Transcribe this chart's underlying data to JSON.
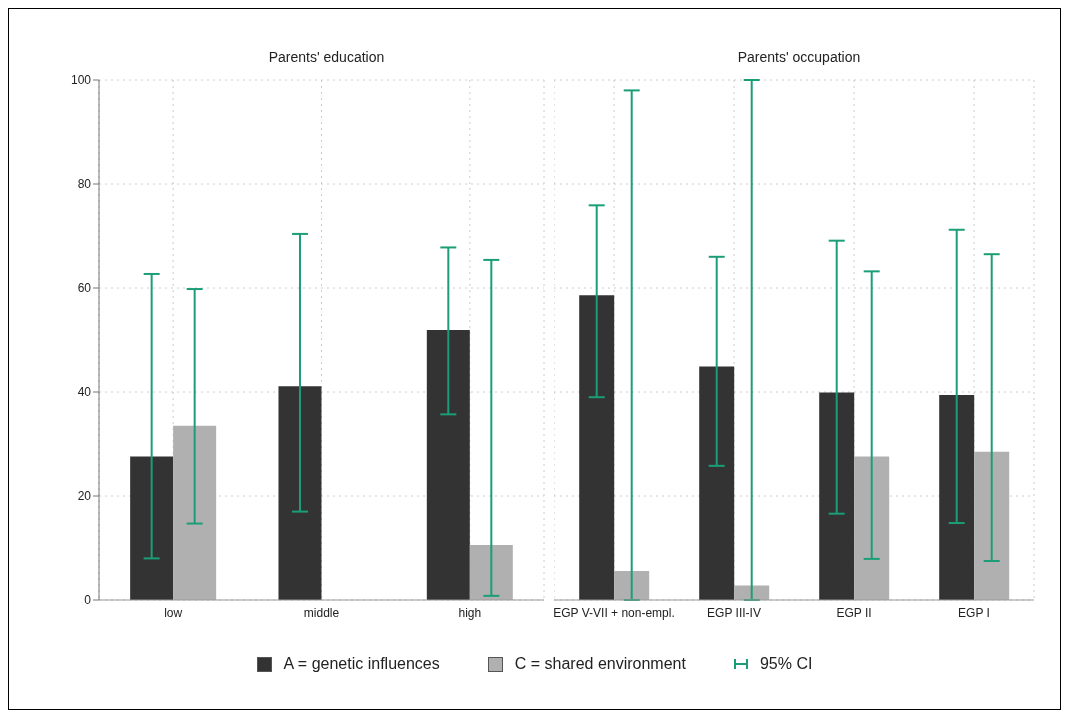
{
  "chart_data": [
    {
      "type": "bar",
      "title": "Parents' education",
      "categories": [
        "low",
        "middle",
        "high"
      ],
      "ylim": [
        0,
        100
      ],
      "yticks": [
        0,
        20,
        40,
        60,
        80,
        100
      ],
      "grid": true,
      "legend": "bottom",
      "series": [
        {
          "name": "A = genetic influences",
          "color": "#333333",
          "values": [
            27.6,
            41.1,
            51.9
          ],
          "errors": [
            [
              8,
              62.7
            ],
            [
              17,
              70.4
            ],
            [
              35.7,
              67.8
            ]
          ]
        },
        {
          "name": "C = shared environment",
          "color": "#b0b0b0",
          "values": [
            33.5,
            null,
            10.6
          ],
          "errors": [
            [
              14.7,
              59.8
            ],
            null,
            [
              0.8,
              65.4
            ]
          ]
        }
      ],
      "annotations": [
        "95% CI"
      ]
    },
    {
      "type": "bar",
      "title": "Parents' occupation",
      "categories": [
        "EGP V-VII + non-empl.",
        "EGP III-IV",
        "EGP II",
        "EGP I"
      ],
      "ylim": [
        0,
        100
      ],
      "yticks": [
        0,
        20,
        40,
        60,
        80,
        100
      ],
      "grid": true,
      "tick_labels": "x",
      "series": [
        {
          "color": "#333333",
          "values": [
            58.6,
            44.9,
            39.9,
            39.4
          ],
          "errors": [
            [
              39,
              75.9
            ],
            [
              25.8,
              66
            ],
            [
              16.6,
              69.1
            ],
            [
              14.8,
              71.2
            ]
          ]
        },
        {
          "color": "#b0b0b0",
          "values": [
            5.6,
            2.8,
            27.6,
            28.5
          ],
          "errors": [
            [
              0,
              98
            ],
            [
              0,
              100
            ],
            [
              7.9,
              63.2
            ],
            [
              7.5,
              66.5
            ]
          ]
        }
      ]
    }
  ]
}
